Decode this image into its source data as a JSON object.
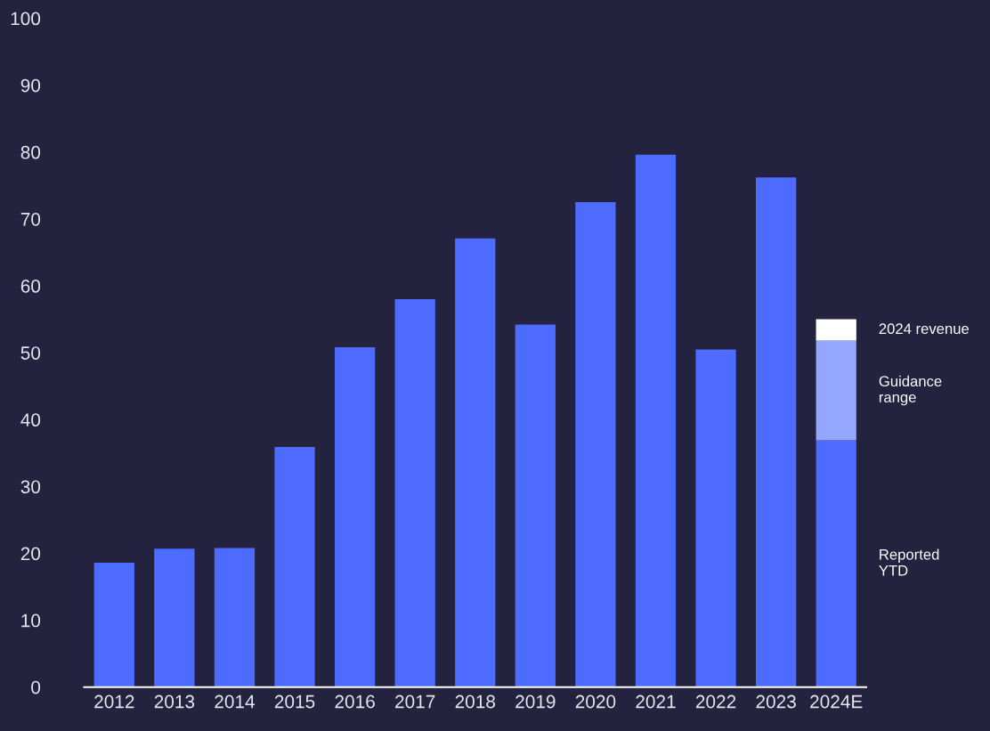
{
  "chart_data": {
    "type": "bar",
    "stacked": true,
    "categories": [
      "2012",
      "2013",
      "2014",
      "2015",
      "2016",
      "2017",
      "2018",
      "2019",
      "2020",
      "2021",
      "2022",
      "2023",
      "2024E"
    ],
    "series": [
      {
        "name": "Reported\nYTD",
        "color": "#4d6bfe",
        "values": [
          18.6,
          20.7,
          20.8,
          35.9,
          50.8,
          58.0,
          67.1,
          54.2,
          72.5,
          79.6,
          50.5,
          76.2,
          36.9
        ]
      },
      {
        "name": "Guidance\nrange",
        "color": "#94a6ff",
        "values": [
          null,
          null,
          null,
          null,
          null,
          null,
          null,
          null,
          null,
          null,
          null,
          null,
          14.9
        ]
      },
      {
        "name": "2024 revenue",
        "color": "#ffffff",
        "values": [
          null,
          null,
          null,
          null,
          null,
          null,
          null,
          null,
          null,
          null,
          null,
          null,
          3.2
        ]
      }
    ],
    "ylim": [
      0,
      100
    ],
    "yticks": [
      0,
      10,
      20,
      30,
      40,
      50,
      60,
      70,
      80,
      90,
      100
    ],
    "grid": false
  }
}
